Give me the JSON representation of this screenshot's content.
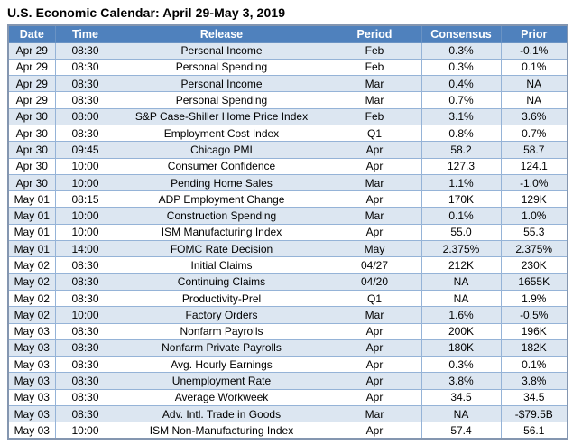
{
  "title": "U.S. Economic Calendar: April 29-May 3, 2019",
  "table": {
    "columns": [
      "Date",
      "Time",
      "Release",
      "Period",
      "Consensus",
      "Prior"
    ],
    "rows": [
      [
        "Apr 29",
        "08:30",
        "Personal Income",
        "Feb",
        "0.3%",
        "-0.1%"
      ],
      [
        "Apr 29",
        "08:30",
        "Personal Spending",
        "Feb",
        "0.3%",
        "0.1%"
      ],
      [
        "Apr 29",
        "08:30",
        "Personal Income",
        "Mar",
        "0.4%",
        "NA"
      ],
      [
        "Apr 29",
        "08:30",
        "Personal Spending",
        "Mar",
        "0.7%",
        "NA"
      ],
      [
        "Apr 30",
        "08:00",
        "S&P Case-Shiller Home Price Index",
        "Feb",
        "3.1%",
        "3.6%"
      ],
      [
        "Apr 30",
        "08:30",
        "Employment Cost Index",
        "Q1",
        "0.8%",
        "0.7%"
      ],
      [
        "Apr 30",
        "09:45",
        "Chicago PMI",
        "Apr",
        "58.2",
        "58.7"
      ],
      [
        "Apr 30",
        "10:00",
        "Consumer Confidence",
        "Apr",
        "127.3",
        "124.1"
      ],
      [
        "Apr 30",
        "10:00",
        "Pending Home Sales",
        "Mar",
        "1.1%",
        "-1.0%"
      ],
      [
        "May 01",
        "08:15",
        "ADP Employment Change",
        "Apr",
        "170K",
        "129K"
      ],
      [
        "May 01",
        "10:00",
        "Construction Spending",
        "Mar",
        "0.1%",
        "1.0%"
      ],
      [
        "May 01",
        "10:00",
        "ISM Manufacturing Index",
        "Apr",
        "55.0",
        "55.3"
      ],
      [
        "May 01",
        "14:00",
        "FOMC Rate Decision",
        "May",
        "2.375%",
        "2.375%"
      ],
      [
        "May 02",
        "08:30",
        "Initial Claims",
        "04/27",
        "212K",
        "230K"
      ],
      [
        "May 02",
        "08:30",
        "Continuing Claims",
        "04/20",
        "NA",
        "1655K"
      ],
      [
        "May 02",
        "08:30",
        "Productivity-Prel",
        "Q1",
        "NA",
        "1.9%"
      ],
      [
        "May 02",
        "10:00",
        "Factory Orders",
        "Mar",
        "1.6%",
        "-0.5%"
      ],
      [
        "May 03",
        "08:30",
        "Nonfarm Payrolls",
        "Apr",
        "200K",
        "196K"
      ],
      [
        "May 03",
        "08:30",
        "Nonfarm Private Payrolls",
        "Apr",
        "180K",
        "182K"
      ],
      [
        "May 03",
        "08:30",
        "Avg. Hourly Earnings",
        "Apr",
        "0.3%",
        "0.1%"
      ],
      [
        "May 03",
        "08:30",
        "Unemployment Rate",
        "Apr",
        "3.8%",
        "3.8%"
      ],
      [
        "May 03",
        "08:30",
        "Average Workweek",
        "Apr",
        "34.5",
        "34.5"
      ],
      [
        "May 03",
        "08:30",
        "Adv. Intl. Trade in Goods",
        "Mar",
        "NA",
        "-$79.5B"
      ],
      [
        "May 03",
        "10:00",
        "ISM Non-Manufacturing Index",
        "Apr",
        "57.4",
        "56.1"
      ]
    ]
  },
  "colors": {
    "header_bg": "#4f81bd",
    "header_text": "#ffffff",
    "row_alt_bg": "#dce6f1",
    "row_bg": "#ffffff",
    "grid_line": "#95b3d7",
    "outer_border": "#8496b0",
    "title_text": "#000000"
  }
}
